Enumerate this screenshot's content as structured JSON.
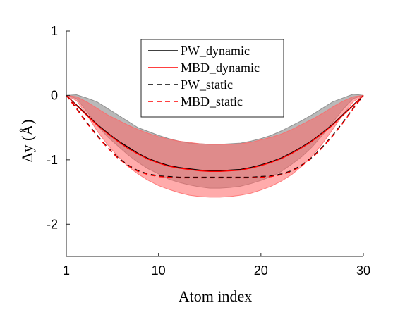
{
  "chart_data": {
    "type": "line",
    "xlabel": "Atom index",
    "ylabel": "Δy (Å)",
    "xlim": [
      1,
      30
    ],
    "ylim": [
      -2.5,
      1
    ],
    "xticks": [
      1,
      10,
      20,
      30
    ],
    "yticks": [
      1,
      0,
      -1,
      -2
    ],
    "x": [
      1,
      2,
      3,
      4,
      5,
      6,
      7,
      8,
      9,
      10,
      11,
      12,
      13,
      14,
      15,
      16,
      17,
      18,
      19,
      20,
      21,
      22,
      23,
      24,
      25,
      26,
      27,
      28,
      29,
      30
    ],
    "series": [
      {
        "name": "PW_dynamic",
        "color": "#000000",
        "style": "solid",
        "values": [
          0,
          -0.15,
          -0.3,
          -0.45,
          -0.58,
          -0.7,
          -0.8,
          -0.9,
          -0.98,
          -1.04,
          -1.09,
          -1.12,
          -1.14,
          -1.16,
          -1.17,
          -1.17,
          -1.16,
          -1.15,
          -1.12,
          -1.08,
          -1.03,
          -0.97,
          -0.89,
          -0.8,
          -0.7,
          -0.58,
          -0.45,
          -0.3,
          -0.15,
          0
        ],
        "band": [
          [
            0,
            0
          ],
          [
            -0.05,
            0.01
          ],
          [
            -0.25,
            -0.04
          ],
          [
            -0.46,
            -0.1
          ],
          [
            -0.64,
            -0.2
          ],
          [
            -0.78,
            -0.3
          ],
          [
            -0.92,
            -0.4
          ],
          [
            -1.04,
            -0.5
          ],
          [
            -1.14,
            -0.56
          ],
          [
            -1.22,
            -0.62
          ],
          [
            -1.3,
            -0.67
          ],
          [
            -1.35,
            -0.71
          ],
          [
            -1.39,
            -0.74
          ],
          [
            -1.42,
            -0.75
          ],
          [
            -1.44,
            -0.76
          ],
          [
            -1.44,
            -0.76
          ],
          [
            -1.43,
            -0.75
          ],
          [
            -1.41,
            -0.74
          ],
          [
            -1.37,
            -0.71
          ],
          [
            -1.32,
            -0.67
          ],
          [
            -1.26,
            -0.62
          ],
          [
            -1.18,
            -0.55
          ],
          [
            -1.07,
            -0.47
          ],
          [
            -0.95,
            -0.39
          ],
          [
            -0.8,
            -0.3
          ],
          [
            -0.62,
            -0.2
          ],
          [
            -0.42,
            -0.1
          ],
          [
            -0.22,
            -0.04
          ],
          [
            -0.05,
            0.02
          ],
          [
            0,
            0
          ]
        ]
      },
      {
        "name": "MBD_dynamic",
        "color": "#ff0000",
        "style": "solid",
        "values": [
          0,
          -0.16,
          -0.31,
          -0.46,
          -0.59,
          -0.71,
          -0.82,
          -0.91,
          -0.99,
          -1.05,
          -1.1,
          -1.13,
          -1.15,
          -1.17,
          -1.18,
          -1.18,
          -1.17,
          -1.16,
          -1.13,
          -1.09,
          -1.04,
          -0.98,
          -0.9,
          -0.81,
          -0.71,
          -0.59,
          -0.46,
          -0.31,
          -0.16,
          0
        ],
        "band": [
          [
            0,
            0
          ],
          [
            -0.08,
            -0.02
          ],
          [
            -0.3,
            -0.1
          ],
          [
            -0.55,
            -0.2
          ],
          [
            -0.76,
            -0.3
          ],
          [
            -0.94,
            -0.38
          ],
          [
            -1.1,
            -0.46
          ],
          [
            -1.22,
            -0.53
          ],
          [
            -1.32,
            -0.59
          ],
          [
            -1.4,
            -0.64
          ],
          [
            -1.46,
            -0.68
          ],
          [
            -1.51,
            -0.71
          ],
          [
            -1.55,
            -0.73
          ],
          [
            -1.57,
            -0.75
          ],
          [
            -1.58,
            -0.76
          ],
          [
            -1.58,
            -0.76
          ],
          [
            -1.57,
            -0.76
          ],
          [
            -1.55,
            -0.75
          ],
          [
            -1.52,
            -0.73
          ],
          [
            -1.47,
            -0.69
          ],
          [
            -1.41,
            -0.65
          ],
          [
            -1.33,
            -0.6
          ],
          [
            -1.23,
            -0.53
          ],
          [
            -1.1,
            -0.45
          ],
          [
            -0.94,
            -0.37
          ],
          [
            -0.75,
            -0.28
          ],
          [
            -0.53,
            -0.18
          ],
          [
            -0.3,
            -0.09
          ],
          [
            -0.1,
            -0.02
          ],
          [
            0,
            0
          ]
        ]
      },
      {
        "name": "PW_static",
        "color": "#000000",
        "style": "dashed",
        "values": [
          0,
          -0.2,
          -0.42,
          -0.62,
          -0.8,
          -0.96,
          -1.08,
          -1.17,
          -1.22,
          -1.25,
          -1.26,
          -1.27,
          -1.27,
          -1.27,
          -1.27,
          -1.27,
          -1.27,
          -1.27,
          -1.27,
          -1.26,
          -1.25,
          -1.22,
          -1.17,
          -1.08,
          -0.96,
          -0.8,
          -0.62,
          -0.42,
          -0.2,
          0
        ]
      },
      {
        "name": "MBD_static",
        "color": "#ff0000",
        "style": "dashed",
        "values": [
          0,
          -0.21,
          -0.43,
          -0.63,
          -0.81,
          -0.97,
          -1.09,
          -1.18,
          -1.23,
          -1.26,
          -1.27,
          -1.28,
          -1.28,
          -1.28,
          -1.28,
          -1.28,
          -1.28,
          -1.28,
          -1.28,
          -1.27,
          -1.26,
          -1.23,
          -1.18,
          -1.09,
          -0.97,
          -0.81,
          -0.63,
          -0.43,
          -0.21,
          0
        ]
      }
    ],
    "legend": {
      "placement": "top-center",
      "entries": [
        "PW_dynamic",
        "MBD_dynamic",
        "PW_static",
        "MBD_static"
      ]
    },
    "band_colors": {
      "PW_dynamic": "#7f7f7f",
      "MBD_dynamic": "#ff6666"
    },
    "grid": false
  }
}
